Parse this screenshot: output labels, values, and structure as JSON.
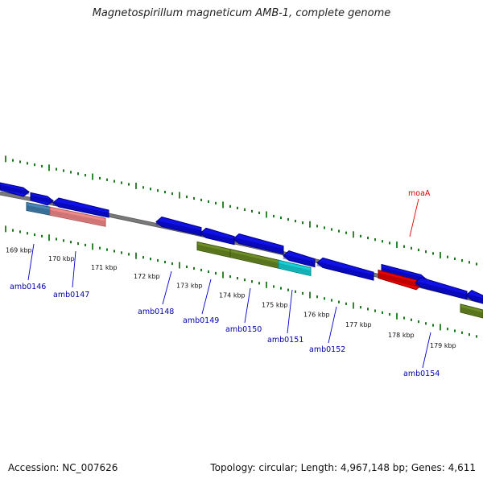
{
  "title": "Magnetospirillum magneticum AMB-1, complete genome",
  "footer": {
    "accession": "Accession: NC_007626",
    "topology": "Topology: circular; Length: 4,967,148 bp; Genes: 4,611"
  },
  "colors": {
    "backbone": "#7a7a7a",
    "tick": "#1a7a1a",
    "leader": "#0000cc",
    "gene_label": "#0000aa",
    "highlight_label": "#dd0000"
  },
  "scale": {
    "labels": [
      "169 kbp",
      "170 kbp",
      "171 kbp",
      "172 kbp",
      "173 kbp",
      "174 kbp",
      "175 kbp",
      "176 kbp",
      "177 kbp",
      "178 kbp",
      "179 kbp"
    ]
  },
  "genes": [
    {
      "label": "",
      "fill": "#1010e8",
      "dark": "#000088"
    },
    {
      "label": "",
      "fill": "#1010e8",
      "dark": "#000088"
    },
    {
      "label": "",
      "fill": "#1010e8",
      "dark": "#000088"
    },
    {
      "label": "amb0146",
      "fill": "#4a86b8",
      "dark": "#24506e"
    },
    {
      "label": "amb0147",
      "fill": "#f08a8a",
      "dark": "#a85a5a"
    },
    {
      "label": "amb0148",
      "fill": "#1010e8",
      "dark": "#000088"
    },
    {
      "label": "",
      "fill": "#1010e8",
      "dark": "#000088"
    },
    {
      "label": "",
      "fill": "#1010e8",
      "dark": "#000088"
    },
    {
      "label": "amb0149",
      "fill": "#6e8e28",
      "dark": "#3e5410"
    },
    {
      "label": "amb0150",
      "fill": "#6e8e28",
      "dark": "#3e5410"
    },
    {
      "label": "amb0151",
      "fill": "#18d2d8",
      "dark": "#088a8e"
    },
    {
      "label": "",
      "fill": "#1010e8",
      "dark": "#000088"
    },
    {
      "label": "amb0152",
      "fill": "#1010e8",
      "dark": "#000088"
    },
    {
      "label": "",
      "fill": "#1010e8",
      "dark": "#000088"
    },
    {
      "label": "moaA",
      "fill": "#ee0000",
      "dark": "#880000"
    },
    {
      "label": "amb0154",
      "fill": "#1010e8",
      "dark": "#000088"
    },
    {
      "label": "",
      "fill": "#1010e8",
      "dark": "#000088"
    },
    {
      "label": "",
      "fill": "#6e8e28",
      "dark": "#3e5410"
    }
  ]
}
